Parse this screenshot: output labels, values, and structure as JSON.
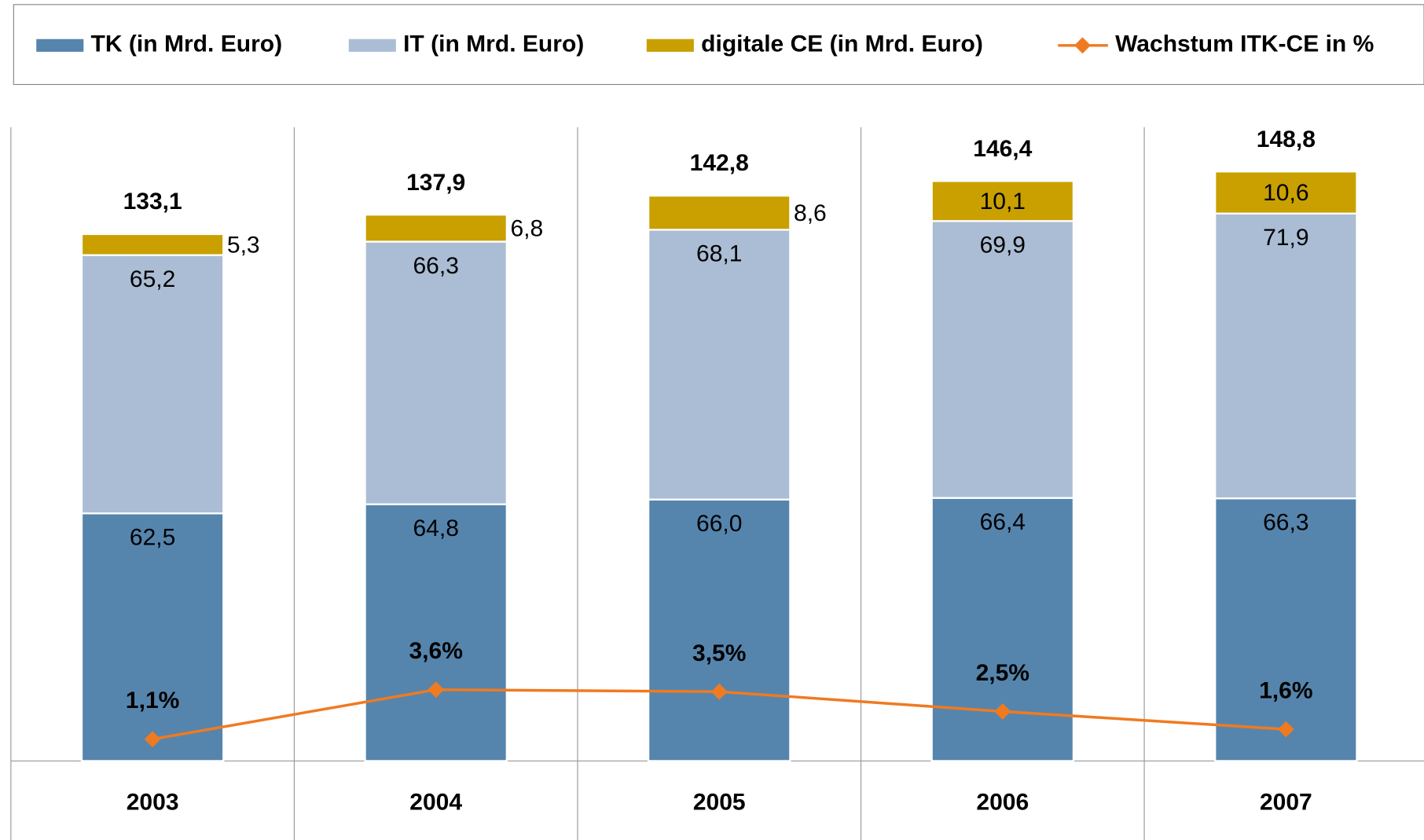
{
  "chart_data": {
    "type": "bar",
    "stacked": true,
    "categories": [
      "2003",
      "2004",
      "2005",
      "2006",
      "2007"
    ],
    "series": [
      {
        "name": "TK (in Mrd. Euro)",
        "color": "#5585ad",
        "values": [
          62.5,
          64.8,
          66.0,
          66.4,
          66.3
        ],
        "value_labels": [
          "62,5",
          "64,8",
          "66,0",
          "66,4",
          "66,3"
        ]
      },
      {
        "name": "IT (in Mrd. Euro)",
        "color": "#abbdd4",
        "values": [
          65.2,
          66.3,
          68.1,
          69.9,
          71.9
        ],
        "value_labels": [
          "65,2",
          "66,3",
          "68,1",
          "69,9",
          "71,9"
        ]
      },
      {
        "name": "digitale CE (in Mrd. Euro)",
        "color": "#c9a000",
        "values": [
          5.3,
          6.8,
          8.6,
          10.1,
          10.6
        ],
        "value_labels": [
          "5,3",
          "6,8",
          "8,6",
          "10,1",
          "10,6"
        ]
      },
      {
        "name": "Wachstum ITK-CE in %",
        "color": "#f07a20",
        "type": "line",
        "axis": "y2",
        "values": [
          1.1,
          3.6,
          3.5,
          2.5,
          1.6
        ],
        "value_labels": [
          "1,1%",
          "3,6%",
          "3,5%",
          "2,5%",
          "1,6%"
        ]
      }
    ],
    "totals": [
      133.1,
      137.9,
      142.8,
      146.4,
      148.8
    ],
    "total_labels": [
      "133,1",
      "137,9",
      "142,8",
      "146,4",
      "148,8"
    ],
    "ylim": [
      0,
      160
    ],
    "y2lim": [
      0,
      32
    ],
    "legend": "top"
  }
}
